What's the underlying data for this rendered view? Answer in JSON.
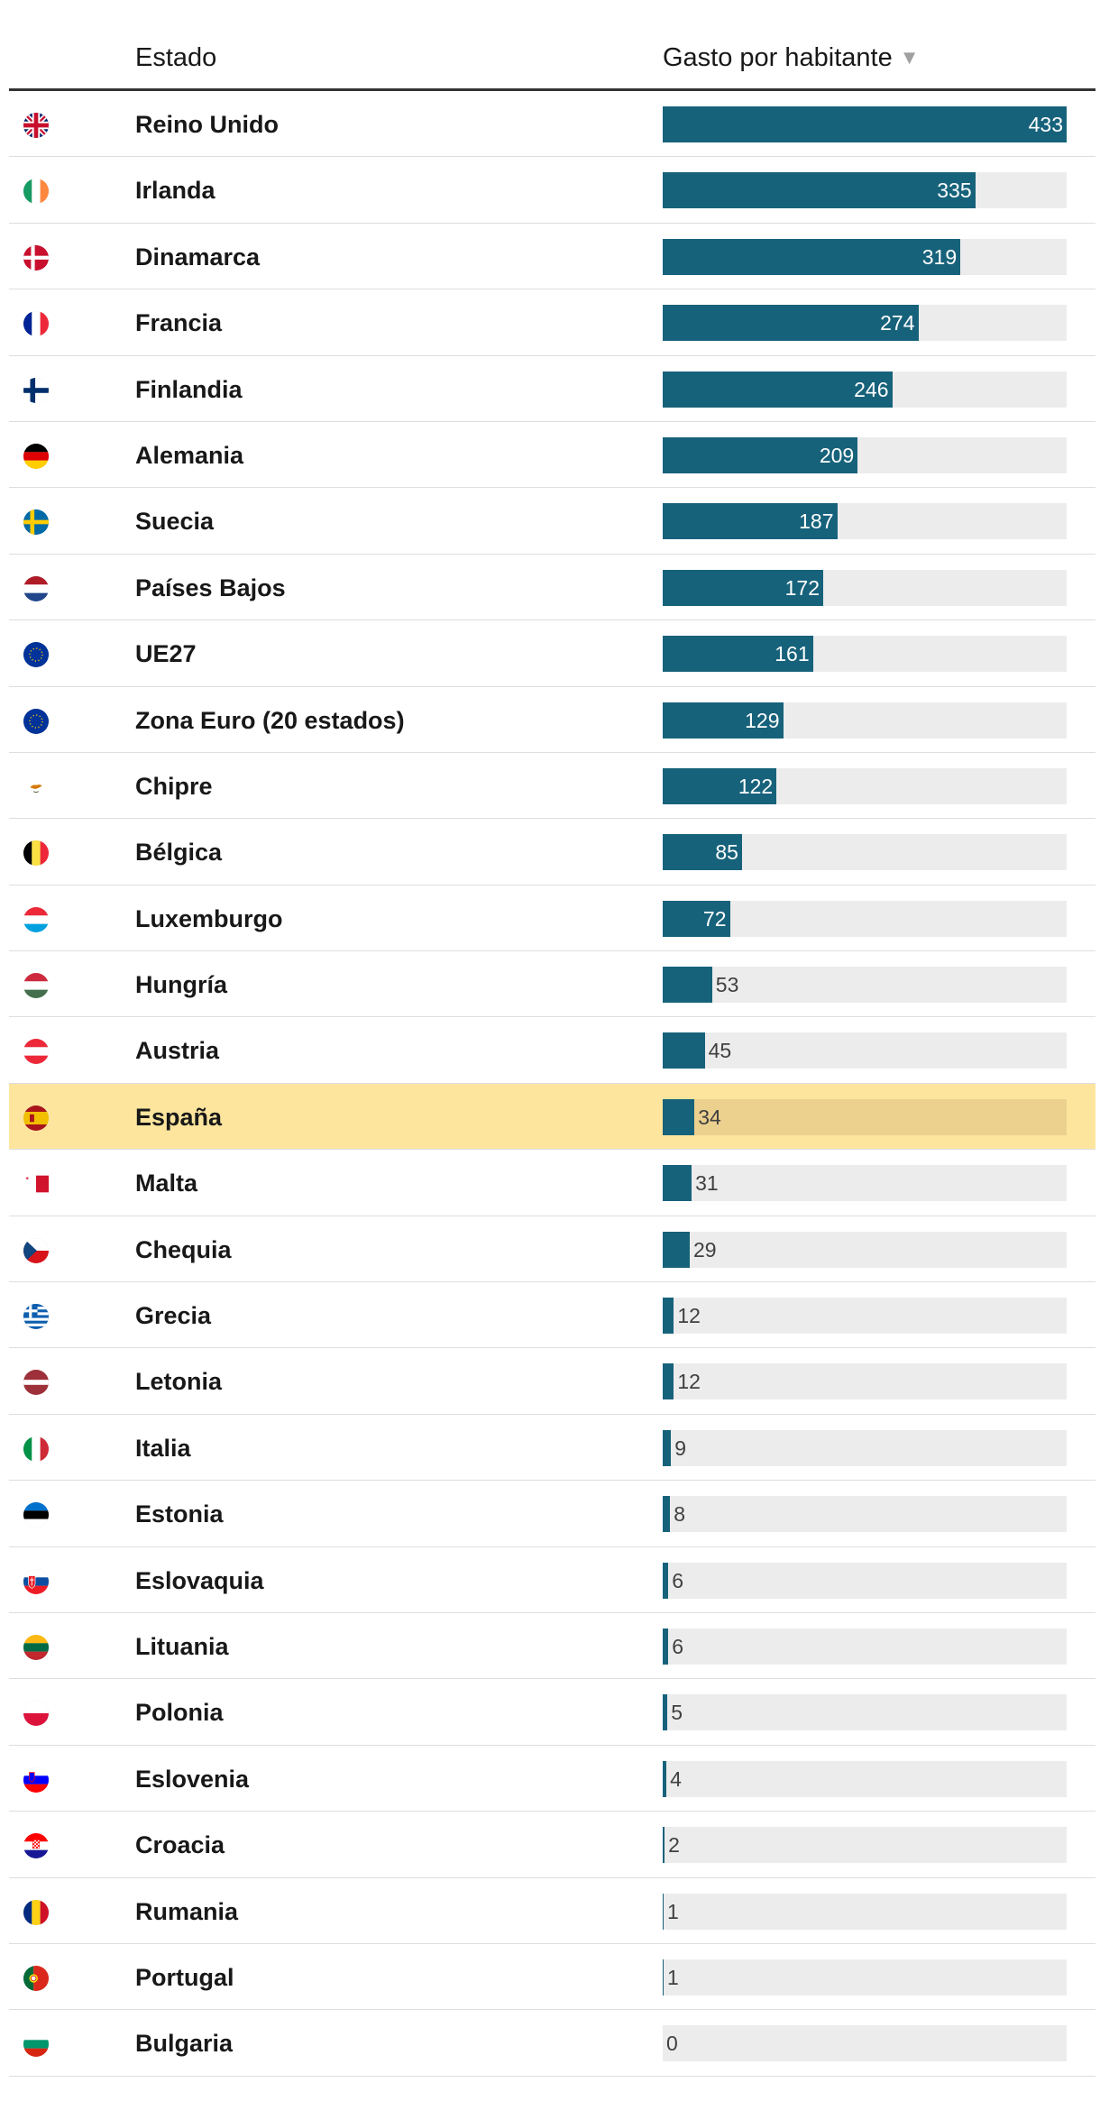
{
  "header": {
    "estado": "Estado",
    "gasto": "Gasto por habitante",
    "sort_icon": "▼"
  },
  "chart_data": {
    "type": "bar",
    "orientation": "horizontal",
    "title": "",
    "xlabel": "Gasto por habitante",
    "ylabel": "Estado",
    "xlim": [
      0,
      433
    ],
    "highlight": "España",
    "colors": {
      "bar": "#17627b",
      "track": "#ececec",
      "highlight_row": "#fde59d",
      "highlight_track": "#ecd08e"
    },
    "categories": [
      "Reino Unido",
      "Irlanda",
      "Dinamarca",
      "Francia",
      "Finlandia",
      "Alemania",
      "Suecia",
      "Países Bajos",
      "UE27",
      "Zona Euro (20 estados)",
      "Chipre",
      "Bélgica",
      "Luxemburgo",
      "Hungría",
      "Austria",
      "España",
      "Malta",
      "Chequia",
      "Grecia",
      "Letonia",
      "Italia",
      "Estonia",
      "Eslovaquia",
      "Lituania",
      "Polonia",
      "Eslovenia",
      "Croacia",
      "Rumania",
      "Portugal",
      "Bulgaria"
    ],
    "values": [
      433,
      335,
      319,
      274,
      246,
      209,
      187,
      172,
      161,
      129,
      122,
      85,
      72,
      53,
      45,
      34,
      31,
      29,
      12,
      12,
      9,
      8,
      6,
      6,
      5,
      4,
      2,
      1,
      1,
      0
    ],
    "flags": [
      "gb-flag-icon",
      "ie-flag-icon",
      "dk-flag-icon",
      "fr-flag-icon",
      "fi-flag-icon",
      "de-flag-icon",
      "se-flag-icon",
      "nl-flag-icon",
      "eu-flag-icon",
      "eu-flag-icon",
      "cy-flag-icon",
      "be-flag-icon",
      "lu-flag-icon",
      "hu-flag-icon",
      "at-flag-icon",
      "es-flag-icon",
      "mt-flag-icon",
      "cz-flag-icon",
      "gr-flag-icon",
      "lv-flag-icon",
      "it-flag-icon",
      "ee-flag-icon",
      "sk-flag-icon",
      "lt-flag-icon",
      "pl-flag-icon",
      "si-flag-icon",
      "hr-flag-icon",
      "ro-flag-icon",
      "pt-flag-icon",
      "bg-flag-icon"
    ]
  }
}
